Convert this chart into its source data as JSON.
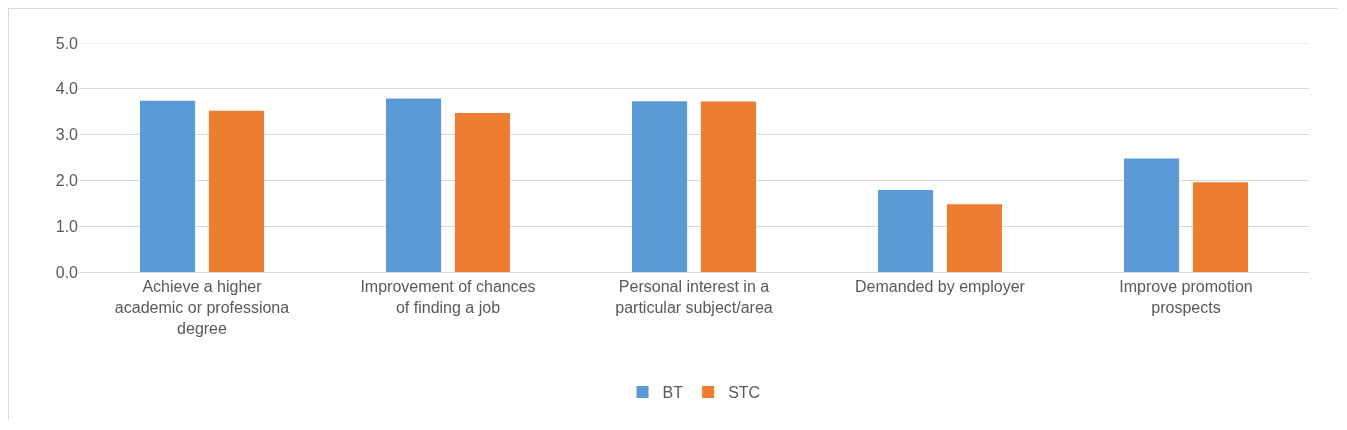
{
  "chart_data": {
    "type": "bar",
    "categories": [
      "Achieve a higher academic or professiona degree",
      "Improvement of chances of finding a job",
      "Personal interest in a particular subject/area",
      "Demanded by employer",
      "Improve promotion prospects"
    ],
    "series": [
      {
        "name": "BT",
        "color": "#5b9bd5",
        "values": [
          3.74,
          3.79,
          3.73,
          1.79,
          2.48
        ]
      },
      {
        "name": "STC",
        "color": "#ed7d31",
        "values": [
          3.52,
          3.47,
          3.72,
          1.48,
          1.96
        ]
      }
    ],
    "ylim": [
      0,
      5
    ],
    "yticks": [
      {
        "value": 0,
        "label": "0.0"
      },
      {
        "value": 1,
        "label": "1.0"
      },
      {
        "value": 2,
        "label": "2.0"
      },
      {
        "value": 3,
        "label": "3.0"
      },
      {
        "value": 4,
        "label": "4.0"
      },
      {
        "value": 5,
        "label": "5.0"
      }
    ],
    "grid": "y",
    "legend": "bottom"
  }
}
